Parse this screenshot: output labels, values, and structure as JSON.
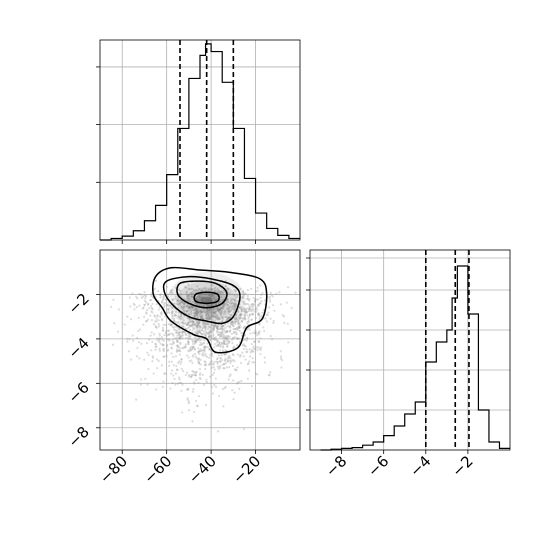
{
  "chart_data": [
    {
      "type": "histogram",
      "panel": "top-left",
      "x": [
        -90,
        -85,
        -80,
        -75,
        -70,
        -65,
        -60,
        -55,
        -50,
        -45,
        -42.5,
        -40,
        -35,
        -30,
        -25,
        -20,
        -15,
        -10,
        -5
      ],
      "bins": [
        [
          -90,
          -85,
          0
        ],
        [
          -85,
          -80,
          2
        ],
        [
          -80,
          -75,
          5
        ],
        [
          -75,
          -70,
          12
        ],
        [
          -70,
          -65,
          25
        ],
        [
          -65,
          -60,
          45
        ],
        [
          -60,
          -55,
          85
        ],
        [
          -55,
          -50,
          145
        ],
        [
          -50,
          -45,
          210
        ],
        [
          -45,
          -42.5,
          240
        ],
        [
          -42.5,
          -40,
          255
        ],
        [
          -40,
          -35,
          245
        ],
        [
          -35,
          -30,
          205
        ],
        [
          -30,
          -25,
          145
        ],
        [
          -25,
          -20,
          80
        ],
        [
          -20,
          -15,
          35
        ],
        [
          -15,
          -10,
          15
        ],
        [
          -10,
          -5,
          6
        ],
        [
          -5,
          0,
          2
        ]
      ],
      "xlim": [
        -90,
        0
      ],
      "ylim": [
        0,
        260
      ],
      "yticks": [
        75,
        150,
        225
      ],
      "quantiles": [
        -54,
        -42,
        -30
      ],
      "grid": true
    },
    {
      "type": "scatter-contour",
      "panel": "bottom-left",
      "xlim": [
        -90,
        0
      ],
      "ylim": [
        -9,
        0
      ],
      "xticks": [
        -80,
        -60,
        -40,
        -20
      ],
      "xtick_labels": [
        "−80",
        "−60",
        "−40",
        "−20"
      ],
      "yticks": [
        -2,
        -4,
        -6,
        -8
      ],
      "ytick_labels": [
        "−2",
        "−4",
        "−6",
        "−8"
      ],
      "density_center": [
        -42,
        -2.1
      ],
      "contours": [
        [
          [
            -65,
            -1.2
          ],
          [
            -58,
            -0.8
          ],
          [
            -45,
            -0.9
          ],
          [
            -32,
            -1.0
          ],
          [
            -18,
            -1.3
          ],
          [
            -15,
            -2.0
          ],
          [
            -17,
            -3.1
          ],
          [
            -24,
            -3.5
          ],
          [
            -28,
            -4.4
          ],
          [
            -38,
            -4.6
          ],
          [
            -42,
            -4.0
          ],
          [
            -48,
            -3.8
          ],
          [
            -58,
            -3.2
          ],
          [
            -62,
            -2.6
          ],
          [
            -66,
            -2.0
          ]
        ],
        [
          [
            -60,
            -1.4
          ],
          [
            -50,
            -1.2
          ],
          [
            -40,
            -1.3
          ],
          [
            -30,
            -1.6
          ],
          [
            -27,
            -2.1
          ],
          [
            -30,
            -3.0
          ],
          [
            -35,
            -3.3
          ],
          [
            -42,
            -3.2
          ],
          [
            -50,
            -3.0
          ],
          [
            -57,
            -2.5
          ],
          [
            -61,
            -1.9
          ]
        ],
        [
          [
            -54,
            -1.5
          ],
          [
            -46,
            -1.4
          ],
          [
            -38,
            -1.5
          ],
          [
            -33,
            -1.9
          ],
          [
            -35,
            -2.4
          ],
          [
            -42,
            -2.6
          ],
          [
            -50,
            -2.4
          ],
          [
            -55,
            -2.0
          ]
        ],
        [
          [
            -47,
            -2.0
          ],
          [
            -42,
            -1.9
          ],
          [
            -37,
            -2.0
          ],
          [
            -37,
            -2.3
          ],
          [
            -42,
            -2.4
          ],
          [
            -47,
            -2.3
          ]
        ]
      ],
      "grid": true
    },
    {
      "type": "histogram",
      "panel": "bottom-right",
      "bins": [
        [
          -9,
          -8.5,
          0
        ],
        [
          -8.5,
          -8,
          1
        ],
        [
          -8,
          -7.5,
          2
        ],
        [
          -7.5,
          -7,
          3
        ],
        [
          -7,
          -6.5,
          6
        ],
        [
          -6.5,
          -6,
          10
        ],
        [
          -6,
          -5.5,
          18
        ],
        [
          -5.5,
          -5,
          30
        ],
        [
          -5,
          -4.5,
          45
        ],
        [
          -4.5,
          -4,
          60
        ],
        [
          -4,
          -3.5,
          110
        ],
        [
          -3.5,
          -3,
          135
        ],
        [
          -3,
          -2.75,
          150
        ],
        [
          -2.75,
          -2.5,
          190
        ],
        [
          -2.5,
          -2,
          230
        ],
        [
          -2,
          -1.5,
          170
        ],
        [
          -1.5,
          -1,
          50
        ],
        [
          -1,
          -0.5,
          10
        ],
        [
          -0.5,
          0,
          2
        ]
      ],
      "xlim": [
        -9.5,
        0
      ],
      "ylim": [
        0,
        250
      ],
      "xticks": [
        -8,
        -6,
        -4,
        -2
      ],
      "xtick_labels": [
        "−8",
        "−6",
        "−4",
        "−2"
      ],
      "yticks": [
        50,
        100,
        150,
        200,
        240
      ],
      "quantiles": [
        -4.0,
        -2.6,
        -1.95
      ],
      "grid": true
    }
  ]
}
